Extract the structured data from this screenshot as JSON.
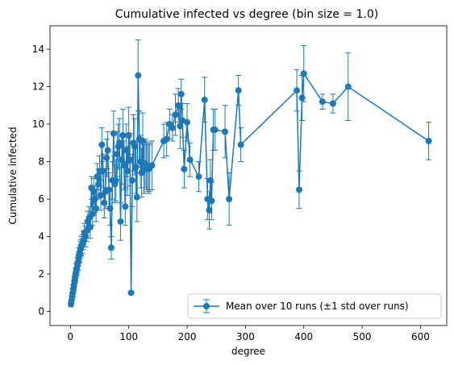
{
  "chart_data": {
    "type": "line",
    "title": "Cumulative infected vs degree (bin size = 1.0)",
    "xlabel": "degree",
    "ylabel": "Cumulative infected",
    "xlim": [
      -35,
      645
    ],
    "ylim": [
      -0.75,
      15.25
    ],
    "xticks": [
      0,
      100,
      200,
      300,
      400,
      500,
      600
    ],
    "yticks": [
      0,
      2,
      4,
      6,
      8,
      10,
      12,
      14
    ],
    "grid": false,
    "legend_position": "lower-right",
    "colors": {
      "series": "#1f77b4",
      "axis": "#000000",
      "background": "#ffffff"
    },
    "series": [
      {
        "name": "Mean over 10 runs (±1 std over runs)",
        "marker": "circle",
        "x": [
          1,
          2,
          3,
          4,
          5,
          6,
          7,
          8,
          9,
          10,
          11,
          12,
          13,
          14,
          15,
          16,
          17,
          18,
          19,
          20,
          22,
          24,
          26,
          28,
          30,
          32,
          34,
          36,
          38,
          40,
          42,
          44,
          46,
          48,
          50,
          52,
          54,
          56,
          58,
          60,
          62,
          64,
          66,
          68,
          70,
          72,
          74,
          76,
          78,
          80,
          82,
          84,
          86,
          88,
          90,
          92,
          94,
          96,
          98,
          100,
          102,
          104,
          106,
          108,
          110,
          112,
          114,
          116,
          118,
          120,
          122,
          124,
          126,
          128,
          130,
          132,
          134,
          136,
          140,
          160,
          165,
          170,
          175,
          180,
          185,
          188,
          190,
          192,
          195,
          200,
          205,
          220,
          230,
          235,
          238,
          240,
          242,
          245,
          248,
          265,
          272,
          288,
          292,
          388,
          392,
          397,
          400,
          432,
          450,
          476,
          614
        ],
        "y": [
          0.4,
          0.6,
          0.8,
          1.0,
          1.2,
          1.4,
          1.6,
          1.8,
          2.0,
          2.2,
          2.3,
          2.5,
          2.6,
          2.8,
          3.0,
          3.1,
          3.3,
          3.4,
          3.5,
          3.6,
          3.8,
          4.2,
          4.0,
          4.3,
          4.8,
          5.0,
          4.5,
          6.6,
          5.2,
          6.4,
          6.0,
          5.5,
          7.2,
          6.8,
          7.5,
          6.2,
          8.9,
          7.5,
          5.8,
          6.4,
          8.2,
          8.6,
          6.5,
          5.5,
          3.4,
          7.0,
          9.5,
          6.8,
          7.0,
          8.4,
          8.8,
          9.0,
          4.8,
          8.1,
          9.4,
          7.8,
          5.6,
          8.6,
          7.5,
          9.4,
          8.1,
          1.0,
          7.0,
          9.0,
          8.8,
          7.7,
          6.1,
          12.6,
          9.2,
          8.0,
          7.4,
          9.1,
          7.6,
          7.9,
          7.8,
          7.7,
          7.6,
          7.7,
          7.8,
          9.1,
          9.2,
          10.0,
          9.8,
          10.5,
          11.0,
          9.9,
          11.6,
          10.2,
          7.6,
          10.1,
          8.1,
          7.2,
          11.3,
          6.0,
          5.4,
          7.0,
          5.9,
          9.7,
          9.7,
          9.6,
          6.0,
          11.8,
          8.9,
          11.8,
          6.5,
          11.4,
          12.7,
          11.2,
          11.1,
          12.0,
          9.1
        ],
        "std": [
          0.15,
          0.2,
          0.2,
          0.25,
          0.25,
          0.3,
          0.3,
          0.3,
          0.35,
          0.35,
          0.35,
          0.4,
          0.4,
          0.4,
          0.4,
          0.45,
          0.45,
          0.45,
          0.5,
          0.5,
          0.5,
          0.5,
          0.55,
          0.55,
          0.55,
          0.6,
          0.6,
          0.6,
          0.6,
          0.7,
          0.7,
          0.7,
          0.7,
          0.8,
          0.8,
          0.8,
          0.9,
          0.9,
          0.8,
          0.9,
          1.0,
          1.0,
          0.9,
          0.9,
          0.6,
          1.0,
          1.2,
          1.0,
          1.1,
          1.2,
          1.2,
          1.3,
          1.0,
          1.3,
          1.4,
          1.3,
          1.0,
          1.4,
          1.3,
          1.5,
          1.4,
          0.0,
          1.4,
          1.5,
          1.5,
          1.4,
          1.3,
          1.9,
          1.5,
          1.4,
          1.3,
          1.5,
          1.3,
          1.3,
          1.3,
          1.3,
          1.3,
          1.3,
          1.3,
          0.9,
          0.9,
          0.8,
          0.7,
          1.1,
          0.9,
          1.2,
          0.8,
          0.9,
          1.0,
          1.0,
          0.9,
          0.8,
          1.2,
          1.1,
          1.0,
          1.1,
          1.0,
          1.1,
          1.1,
          1.4,
          1.4,
          0.8,
          0.9,
          1.1,
          1.0,
          1.2,
          1.5,
          0.4,
          0.5,
          1.8,
          1.0
        ]
      }
    ]
  }
}
